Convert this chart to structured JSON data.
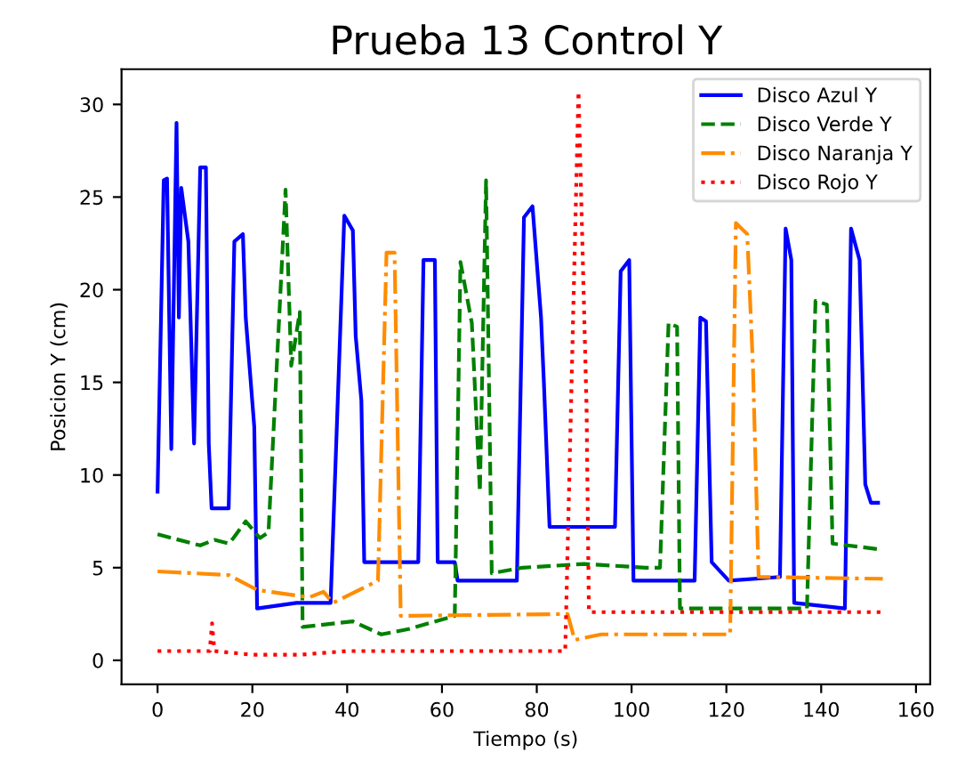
{
  "chart_data": {
    "type": "line",
    "title": "Prueba 13 Control Y",
    "xlabel": "Tiempo (s)",
    "ylabel": "Posicion Y (cm)",
    "xlim": [
      -7.6,
      163
    ],
    "xticks": [
      0,
      20,
      40,
      60,
      80,
      100,
      120,
      140,
      160
    ],
    "ylim": [
      -1.3,
      31.9
    ],
    "yticks": [
      0,
      5,
      10,
      15,
      20,
      25,
      30
    ],
    "grid": false,
    "legend": "top right",
    "marker": "none",
    "series": [
      {
        "name": "Disco Azul Y",
        "color": "#0000ff",
        "line_style": "solid",
        "x": [
          0,
          1.3,
          2,
          2.9,
          4,
          4.5,
          5,
          6.5,
          7.7,
          9,
          10.2,
          10.8,
          11.4,
          15,
          16.2,
          18,
          18.6,
          20.4,
          21,
          29.3,
          36.5,
          39.4,
          41.2,
          41.8,
          43,
          43.6,
          55,
          56.1,
          58.5,
          59.1,
          62.7,
          63.3,
          75.8,
          77.3,
          79.1,
          80.9,
          81.5,
          82.7,
          96.5,
          97.7,
          99.5,
          100.4,
          113.3,
          114.5,
          115.7,
          116.9,
          120.5,
          131.3,
          132.5,
          133.7,
          134.3,
          145,
          146.3,
          148.1,
          149.3,
          150.5,
          152
        ],
        "values": [
          9.1,
          25.9,
          26,
          11.4,
          29,
          18.5,
          25.5,
          22.6,
          11.7,
          26.6,
          26.6,
          11.7,
          8.2,
          8.2,
          22.6,
          23,
          18.5,
          12.6,
          2.8,
          3.1,
          3.1,
          24,
          23.2,
          17.5,
          14,
          5.3,
          5.3,
          21.6,
          21.6,
          5.3,
          5.3,
          4.3,
          4.3,
          23.9,
          24.5,
          18.5,
          15,
          7.2,
          7.2,
          21,
          21.6,
          4.3,
          4.3,
          18.5,
          18.3,
          5.3,
          4.3,
          4.5,
          23.3,
          21.6,
          3.1,
          2.8,
          23.3,
          21.6,
          9.5,
          8.5,
          8.5
        ]
      },
      {
        "name": "Disco Verde Y",
        "color": "#008000",
        "line_style": "dashed",
        "x": [
          0,
          9,
          12,
          15,
          16,
          18.6,
          21.6,
          23.4,
          27,
          28.2,
          30,
          30.6,
          41.2,
          47.2,
          53.2,
          62.7,
          63.9,
          66.3,
          68,
          69.3,
          70.5,
          77,
          90,
          103,
          106,
          107.8,
          109.6,
          110.2,
          137,
          138.8,
          141.2,
          142.4,
          152
        ],
        "values": [
          6.8,
          6.2,
          6.5,
          6.3,
          6.6,
          7.5,
          6.6,
          6.9,
          25.4,
          15.9,
          18.8,
          1.8,
          2.1,
          1.4,
          1.7,
          2.4,
          21.5,
          18.2,
          9.1,
          25.9,
          4.7,
          5,
          5.2,
          5,
          5,
          18.2,
          18,
          2.8,
          2.8,
          19.4,
          19.2,
          6.3,
          6
        ]
      },
      {
        "name": "Disco Naranja Y",
        "color": "#ff8c00",
        "line_style": "dashdot",
        "x": [
          0,
          15,
          21,
          32,
          35,
          37,
          41,
          46.5,
          48.3,
          50,
          51.3,
          86.5,
          88,
          93.6,
          120.8,
          122,
          124.4,
          125.6,
          126.8,
          153
        ],
        "values": [
          4.8,
          4.6,
          3.8,
          3.4,
          3.7,
          3.1,
          3.6,
          4.3,
          22,
          22,
          2.4,
          2.5,
          1.1,
          1.4,
          1.4,
          23.6,
          23,
          15.9,
          4.5,
          4.4
        ]
      },
      {
        "name": "Disco Rojo Y",
        "color": "#ff0000",
        "line_style": "dotted",
        "x": [
          0,
          11,
          11.5,
          12,
          20,
          30,
          40,
          86,
          88.8,
          90.5,
          91,
          153
        ],
        "values": [
          0.5,
          0.5,
          2,
          0.5,
          0.3,
          0.3,
          0.5,
          0.5,
          30.7,
          13.7,
          2.6,
          2.6
        ]
      }
    ]
  }
}
